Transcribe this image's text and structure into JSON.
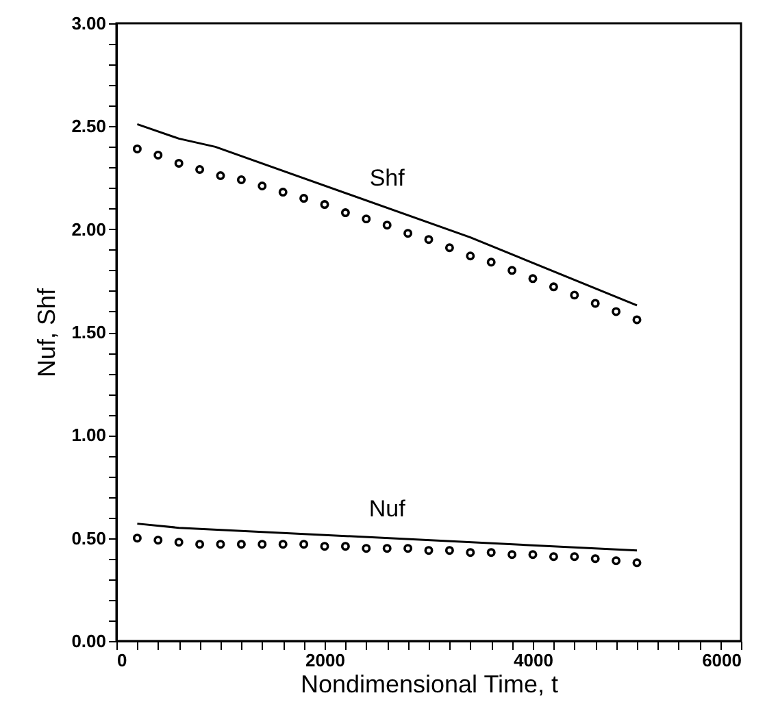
{
  "chart_data": {
    "type": "line",
    "xlabel": "Nondimensional Time, t",
    "ylabel": "Nuf, Shf",
    "xlim": [
      0,
      6000
    ],
    "ylim": [
      0,
      3
    ],
    "xticks": [
      {
        "value": 0,
        "label": "0"
      },
      {
        "value": 200,
        "label": null
      },
      {
        "value": 400,
        "label": null
      },
      {
        "value": 600,
        "label": null
      },
      {
        "value": 800,
        "label": null
      },
      {
        "value": 1000,
        "label": null
      },
      {
        "value": 1200,
        "label": null
      },
      {
        "value": 1400,
        "label": null
      },
      {
        "value": 1600,
        "label": null
      },
      {
        "value": 1800,
        "label": null
      },
      {
        "value": 2000,
        "label": "2000"
      },
      {
        "value": 2200,
        "label": null
      },
      {
        "value": 2400,
        "label": null
      },
      {
        "value": 2600,
        "label": null
      },
      {
        "value": 2800,
        "label": null
      },
      {
        "value": 3000,
        "label": null
      },
      {
        "value": 3200,
        "label": null
      },
      {
        "value": 3400,
        "label": null
      },
      {
        "value": 3600,
        "label": null
      },
      {
        "value": 3800,
        "label": null
      },
      {
        "value": 4000,
        "label": "4000"
      },
      {
        "value": 4200,
        "label": null
      },
      {
        "value": 4400,
        "label": null
      },
      {
        "value": 4600,
        "label": null
      },
      {
        "value": 4800,
        "label": null
      },
      {
        "value": 5000,
        "label": null
      },
      {
        "value": 5200,
        "label": null
      },
      {
        "value": 5400,
        "label": null
      },
      {
        "value": 5600,
        "label": null
      },
      {
        "value": 5800,
        "label": null
      },
      {
        "value": 6000,
        "label": "6000"
      }
    ],
    "yticks": [
      {
        "value": 0,
        "label": "0.00"
      },
      {
        "value": 0.1,
        "label": null
      },
      {
        "value": 0.2,
        "label": null
      },
      {
        "value": 0.3,
        "label": null
      },
      {
        "value": 0.4,
        "label": null
      },
      {
        "value": 0.5,
        "label": "0.50"
      },
      {
        "value": 0.6,
        "label": null
      },
      {
        "value": 0.7,
        "label": null
      },
      {
        "value": 0.8,
        "label": null
      },
      {
        "value": 0.9,
        "label": null
      },
      {
        "value": 1.0,
        "label": "1.00"
      },
      {
        "value": 1.1,
        "label": null
      },
      {
        "value": 1.2,
        "label": null
      },
      {
        "value": 1.3,
        "label": null
      },
      {
        "value": 1.4,
        "label": null
      },
      {
        "value": 1.5,
        "label": "1.50"
      },
      {
        "value": 1.6,
        "label": null
      },
      {
        "value": 1.7,
        "label": null
      },
      {
        "value": 1.8,
        "label": null
      },
      {
        "value": 1.9,
        "label": null
      },
      {
        "value": 2.0,
        "label": "2.00"
      },
      {
        "value": 2.1,
        "label": null
      },
      {
        "value": 2.2,
        "label": null
      },
      {
        "value": 2.3,
        "label": null
      },
      {
        "value": 2.4,
        "label": null
      },
      {
        "value": 2.5,
        "label": "2.50"
      },
      {
        "value": 2.6,
        "label": null
      },
      {
        "value": 2.7,
        "label": null
      },
      {
        "value": 2.8,
        "label": null
      },
      {
        "value": 2.9,
        "label": null
      },
      {
        "value": 3.0,
        "label": "3.00"
      }
    ],
    "line_style": "solid",
    "grid": false,
    "annotations": [
      "Shf",
      "Nuf"
    ],
    "series": [
      {
        "type": "line",
        "color": "#000000",
        "marker": "none",
        "x": [
          200,
          600,
          950,
          3400,
          5000
        ],
        "values": [
          2.51,
          2.44,
          2.4,
          1.96,
          1.63
        ]
      },
      {
        "type": "scatter",
        "color": "#000000",
        "marker": "circle",
        "x": [
          200,
          400,
          600,
          800,
          1000,
          1200,
          1400,
          1600,
          1800,
          2000,
          2200,
          2400,
          2600,
          2800,
          3000,
          3200,
          3400,
          3600,
          3800,
          4000,
          4200,
          4400,
          4600,
          4800,
          5000
        ],
        "values": [
          2.39,
          2.36,
          2.32,
          2.29,
          2.26,
          2.24,
          2.21,
          2.18,
          2.15,
          2.12,
          2.08,
          2.05,
          2.02,
          1.98,
          1.95,
          1.91,
          1.87,
          1.84,
          1.8,
          1.76,
          1.72,
          1.68,
          1.64,
          1.6,
          1.56
        ]
      },
      {
        "type": "line",
        "color": "#000000",
        "marker": "none",
        "x": [
          200,
          600,
          5000
        ],
        "values": [
          0.57,
          0.55,
          0.44
        ]
      },
      {
        "type": "scatter",
        "color": "#000000",
        "marker": "circle",
        "x": [
          200,
          400,
          600,
          800,
          1000,
          1200,
          1400,
          1600,
          1800,
          2000,
          2200,
          2400,
          2600,
          2800,
          3000,
          3200,
          3400,
          3600,
          3800,
          4000,
          4200,
          4400,
          4600,
          4800,
          5000
        ],
        "values": [
          0.5,
          0.49,
          0.48,
          0.47,
          0.47,
          0.47,
          0.47,
          0.47,
          0.47,
          0.46,
          0.46,
          0.45,
          0.45,
          0.45,
          0.44,
          0.44,
          0.43,
          0.43,
          0.42,
          0.42,
          0.41,
          0.41,
          0.4,
          0.39,
          0.38
        ]
      }
    ]
  }
}
